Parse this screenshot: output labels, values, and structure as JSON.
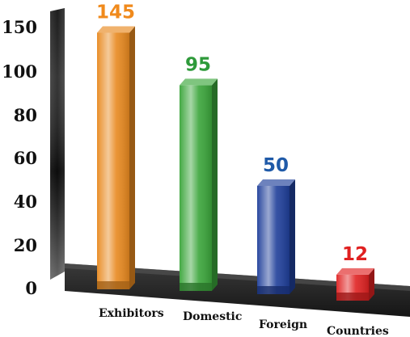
{
  "chart_data": {
    "type": "bar",
    "categories": [
      "Exhibitors",
      "Domestic",
      "Foreign",
      "Countries"
    ],
    "values": [
      145,
      95,
      50,
      12
    ],
    "value_labels": [
      "145",
      "95",
      "50",
      "12"
    ],
    "colors": [
      "#e8891f",
      "#3aa53a",
      "#1f3f9a",
      "#e02222"
    ],
    "label_colors": [
      "#f08a1c",
      "#2e9a3a",
      "#1f5aa8",
      "#e02020"
    ],
    "y_ticks": [
      "0",
      "20",
      "40",
      "60",
      "80",
      "100",
      "150"
    ],
    "ylim": [
      0,
      150
    ],
    "grid": false,
    "legend": "none",
    "title": "",
    "xlabel": "",
    "ylabel": "",
    "style": "3d"
  }
}
